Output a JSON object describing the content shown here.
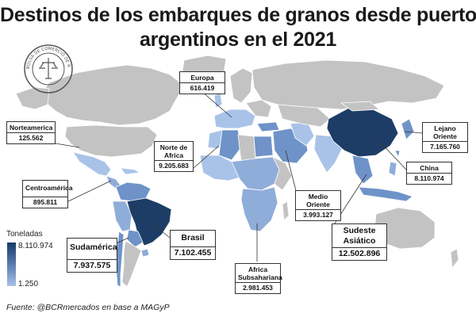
{
  "title": {
    "line1": "Destinos de los embarques de granos desde puertos",
    "line2": "argentinos en el 2021"
  },
  "seal_text": "BOLSA DE COMERCIO DE ROSARIO",
  "legend": {
    "title": "Toneladas",
    "max": "8.110.974",
    "min": "1.250"
  },
  "source": "Fuente: @BCRmercados en base a MAGyP",
  "regions": {
    "europa": {
      "label": "Europa",
      "value": "616.419"
    },
    "norteamerica": {
      "label": "Norteamerica",
      "value": "125.562"
    },
    "norte_africa": {
      "label1": "Norte de",
      "label2": "Africa",
      "value": "9.205.683"
    },
    "centroamerica": {
      "label": "Centroamérica",
      "value": "895.811"
    },
    "lejano_oriente": {
      "label1": "Lejano",
      "label2": "Oriente",
      "value": "7.165.760"
    },
    "china": {
      "label": "China",
      "value": "8.110.974"
    },
    "medio_oriente": {
      "label1": "Medio",
      "label2": "Oriente",
      "value": "3.993.127"
    },
    "sudeste_asiatico": {
      "label1": "Sudeste",
      "label2": "Asiático",
      "value": "12.502.896"
    },
    "brasil": {
      "label": "Brasil",
      "value": "7.102.455"
    },
    "sudamerica": {
      "label": "Sudamérica",
      "value": "7.937.575"
    },
    "africa_subsahariana": {
      "label1": "Africa",
      "label2": "Subsahariana",
      "value": "2.981.453"
    }
  },
  "colors": {
    "no_data": "#c3c3c3",
    "light": "#a9c3e8",
    "mid": "#6f93c8",
    "dark": "#1d3d66",
    "ocean": "#ffffff"
  }
}
